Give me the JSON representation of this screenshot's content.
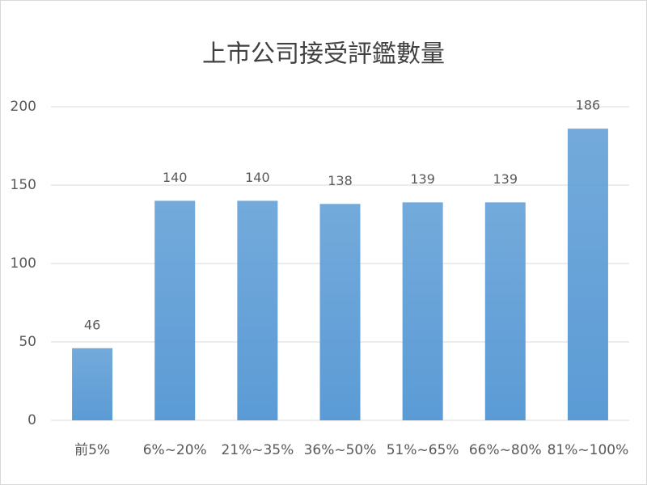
{
  "chart_data": {
    "type": "bar",
    "title": "上市公司接受評鑑數量",
    "categories": [
      "前5%",
      "6%~20%",
      "21%~35%",
      "36%~50%",
      "51%~65%",
      "66%~80%",
      "81%~100%"
    ],
    "values": [
      46,
      140,
      140,
      138,
      139,
      139,
      186
    ],
    "color": "#5b9bd5",
    "ylim": [
      0,
      200
    ],
    "yticks": [
      0,
      50,
      100,
      150,
      200
    ],
    "grid": true
  }
}
